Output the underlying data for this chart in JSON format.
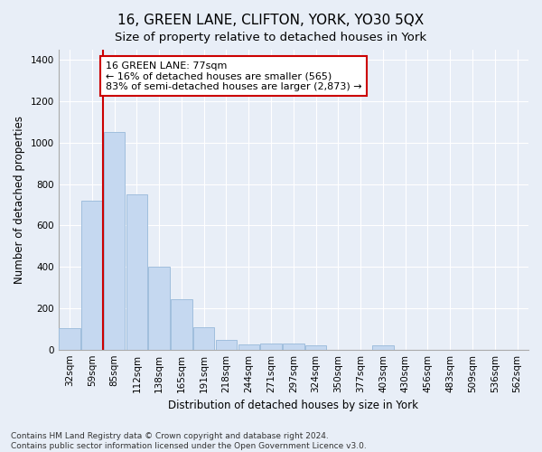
{
  "title": "16, GREEN LANE, CLIFTON, YORK, YO30 5QX",
  "subtitle": "Size of property relative to detached houses in York",
  "xlabel": "Distribution of detached houses by size in York",
  "ylabel": "Number of detached properties",
  "footnote": "Contains HM Land Registry data © Crown copyright and database right 2024.\nContains public sector information licensed under the Open Government Licence v3.0.",
  "categories": [
    "32sqm",
    "59sqm",
    "85sqm",
    "112sqm",
    "138sqm",
    "165sqm",
    "191sqm",
    "218sqm",
    "244sqm",
    "271sqm",
    "297sqm",
    "324sqm",
    "350sqm",
    "377sqm",
    "403sqm",
    "430sqm",
    "456sqm",
    "483sqm",
    "509sqm",
    "536sqm",
    "562sqm"
  ],
  "values": [
    105,
    720,
    1050,
    750,
    400,
    242,
    110,
    47,
    25,
    30,
    30,
    20,
    0,
    0,
    20,
    0,
    0,
    0,
    0,
    0,
    0
  ],
  "bar_color": "#c5d8f0",
  "bar_edge_color": "#a0bedd",
  "vline_pos": 1.5,
  "vline_color": "#cc0000",
  "annotation_text": "16 GREEN LANE: 77sqm\n← 16% of detached houses are smaller (565)\n83% of semi-detached houses are larger (2,873) →",
  "annotation_box_color": "#ffffff",
  "annotation_box_edge": "#cc0000",
  "ylim": [
    0,
    1450
  ],
  "yticks": [
    0,
    200,
    400,
    600,
    800,
    1000,
    1200,
    1400
  ],
  "background_color": "#e8eef7",
  "plot_background": "#e8eef7",
  "title_fontsize": 11,
  "subtitle_fontsize": 9.5,
  "axis_fontsize": 8.5,
  "tick_fontsize": 7.5,
  "footnote_fontsize": 6.5
}
